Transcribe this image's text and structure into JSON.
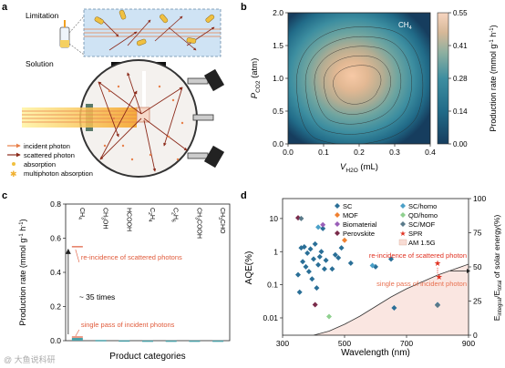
{
  "panel_a": {
    "panel_letter": "a",
    "limitation_label": "Limitation",
    "solution_label": "Solution",
    "legend": [
      {
        "text": "incident photon",
        "color": "#e8804a",
        "symbol": "line"
      },
      {
        "text": "scattered photon",
        "color": "#8b2a1a",
        "symbol": "arrow"
      },
      {
        "text": "absorption",
        "color": "#f0c040",
        "symbol": "dot"
      },
      {
        "text": "multiphoton absorption",
        "color": "#f0b030",
        "symbol": "star"
      }
    ]
  },
  "chart_data": [
    {
      "panel": "b",
      "type": "heatmap",
      "title": "",
      "annotation": "CH",
      "annotation_sub": "4",
      "xlabel": "V",
      "xlabel_sub": "H2O",
      "xlabel_unit": " (mL)",
      "ylabel": "P",
      "ylabel_sub": "CO2",
      "ylabel_unit": " (atm)",
      "xlim": [
        0.0,
        0.4
      ],
      "ylim": [
        0.0,
        2.0
      ],
      "x_ticks": [
        "0.0",
        "0.1",
        "0.2",
        "0.3",
        "0.4"
      ],
      "y_ticks": [
        "0.0",
        "0.5",
        "1.0",
        "1.5",
        "2.0"
      ],
      "peak": {
        "x": 0.19,
        "y": 0.97,
        "value": 0.55
      },
      "colorbar": {
        "label": "Production rate (mmol g",
        "label_sup": "-1",
        "label_tail": " h",
        "label_sup2": "-1",
        "label_close": ")",
        "ticks": [
          "0.00",
          "0.14",
          "0.28",
          "0.41",
          "0.55"
        ],
        "min": 0.0,
        "max": 0.55
      }
    },
    {
      "panel": "c",
      "type": "bar",
      "title": "",
      "xlabel": "Product categories",
      "ylabel": "Production rate (mmol g",
      "ylabel_sup": "-1",
      "ylabel_tail": " h",
      "ylabel_sup2": "-1",
      "ylabel_close": ")",
      "ylim": [
        0.0,
        0.8
      ],
      "y_ticks": [
        "0.0",
        "0.2",
        "0.4",
        "0.6",
        "0.8"
      ],
      "categories": [
        {
          "main": "CH",
          "sub": "4"
        },
        {
          "main": "CH",
          "sub": "3",
          "tail": "OH"
        },
        {
          "main": "HCOOH"
        },
        {
          "main": "C",
          "sub": "2",
          "tail": "H",
          "sub2": "4"
        },
        {
          "main": "C",
          "sub": "2",
          "tail": "H",
          "sub2": "6"
        },
        {
          "main": "CH",
          "sub": "3",
          "tail": "COOH"
        },
        {
          "main": "CH",
          "sub": "3",
          "tail": "CHO"
        }
      ],
      "series": [
        {
          "name": "re-incidence of scattered photons",
          "color": "#e05a3a",
          "values": [
            0.55,
            null,
            null,
            null,
            null,
            null,
            null
          ]
        },
        {
          "name": "single pass of incident photons",
          "color": "#e05a3a",
          "values": [
            0.016,
            0.004,
            0.002,
            0.001,
            0.001,
            0.001,
            0.001
          ]
        }
      ],
      "enhancement_label": "~ 35 times"
    },
    {
      "panel": "d",
      "type": "scatter",
      "title": "",
      "xlabel": "Wavelength (nm)",
      "ylabel": "AQE(%)",
      "y2label": "E",
      "y2label_sub": "integral",
      "y2label_mid": "/E",
      "y2label_sub2": "total",
      "y2label_tail": " of solar energy(%)",
      "xlim": [
        300,
        900
      ],
      "x_ticks": [
        "300",
        "500",
        "700",
        "900"
      ],
      "ylim_log": [
        0.003,
        40
      ],
      "y_ticks": [
        "0.01",
        "0.1",
        "1",
        "10"
      ],
      "y2lim": [
        0,
        100
      ],
      "y2_ticks": [
        "0",
        "25",
        "50",
        "75",
        "100"
      ],
      "legend": [
        {
          "name": "SC",
          "color": "#2a6f97",
          "shape": "diamond"
        },
        {
          "name": "MOF",
          "color": "#f08030",
          "shape": "diamond"
        },
        {
          "name": "Biomaterial",
          "color": "#9a5fb8",
          "shape": "diamond"
        },
        {
          "name": "Perovskite",
          "color": "#7a2a4a",
          "shape": "diamond"
        },
        {
          "name": "SC/homo",
          "color": "#4aa0c8",
          "shape": "diamond"
        },
        {
          "name": "QD/homo",
          "color": "#8fd08f",
          "shape": "diamond"
        },
        {
          "name": "SC/MOF",
          "color": "#5a7a8a",
          "shape": "diamond"
        },
        {
          "name": "SPR",
          "color": "#e03020",
          "shape": "star"
        },
        {
          "name": "AM 1.5G",
          "color": "#f8dcd4",
          "shape": "area"
        }
      ],
      "points": [
        {
          "s": 0,
          "x": 350,
          "y": 0.2
        },
        {
          "s": 0,
          "x": 355,
          "y": 0.06
        },
        {
          "s": 0,
          "x": 360,
          "y": 1.3
        },
        {
          "s": 0,
          "x": 365,
          "y": 0.5
        },
        {
          "s": 0,
          "x": 370,
          "y": 1.4
        },
        {
          "s": 0,
          "x": 375,
          "y": 0.35
        },
        {
          "s": 0,
          "x": 380,
          "y": 0.9
        },
        {
          "s": 0,
          "x": 385,
          "y": 0.25
        },
        {
          "s": 0,
          "x": 390,
          "y": 1.2
        },
        {
          "s": 0,
          "x": 395,
          "y": 0.15
        },
        {
          "s": 0,
          "x": 400,
          "y": 0.6
        },
        {
          "s": 0,
          "x": 405,
          "y": 1.7
        },
        {
          "s": 0,
          "x": 410,
          "y": 0.08
        },
        {
          "s": 0,
          "x": 415,
          "y": 0.4
        },
        {
          "s": 0,
          "x": 420,
          "y": 0.7
        },
        {
          "s": 0,
          "x": 425,
          "y": 1.0
        },
        {
          "s": 0,
          "x": 430,
          "y": 5.0
        },
        {
          "s": 0,
          "x": 435,
          "y": 0.3
        },
        {
          "s": 0,
          "x": 440,
          "y": 0.55
        },
        {
          "s": 0,
          "x": 460,
          "y": 0.3
        },
        {
          "s": 0,
          "x": 470,
          "y": 0.8
        },
        {
          "s": 0,
          "x": 480,
          "y": 0.65
        },
        {
          "s": 0,
          "x": 490,
          "y": 1.3
        },
        {
          "s": 0,
          "x": 520,
          "y": 0.45
        },
        {
          "s": 0,
          "x": 600,
          "y": 0.35
        },
        {
          "s": 0,
          "x": 650,
          "y": 0.6
        },
        {
          "s": 0,
          "x": 660,
          "y": 0.02
        },
        {
          "s": 0,
          "x": 800,
          "y": 0.025
        },
        {
          "s": 1,
          "x": 500,
          "y": 2.2
        },
        {
          "s": 2,
          "x": 430,
          "y": 6.5
        },
        {
          "s": 3,
          "x": 350,
          "y": 10.5
        },
        {
          "s": 3,
          "x": 405,
          "y": 0.025
        },
        {
          "s": 4,
          "x": 590,
          "y": 0.38
        },
        {
          "s": 4,
          "x": 415,
          "y": 5.5
        },
        {
          "s": 5,
          "x": 450,
          "y": 0.011
        },
        {
          "s": 6,
          "x": 360,
          "y": 10.0
        },
        {
          "s": 6,
          "x": 800,
          "y": 0.024
        },
        {
          "s": 7,
          "x": 800,
          "y": 0.45
        },
        {
          "s": 7,
          "x": 805,
          "y": 0.17
        }
      ],
      "am15g_curve": [
        [
          400,
          0
        ],
        [
          450,
          3
        ],
        [
          500,
          8
        ],
        [
          550,
          14
        ],
        [
          600,
          21
        ],
        [
          650,
          28
        ],
        [
          700,
          34
        ],
        [
          750,
          39
        ],
        [
          800,
          44
        ],
        [
          850,
          48
        ],
        [
          900,
          52
        ]
      ],
      "annotations": [
        {
          "text": "re-incidence of scattered photon"
        },
        {
          "text": "single pass of incident photon"
        }
      ]
    }
  ],
  "watermark": "@ 大鱼说科研"
}
